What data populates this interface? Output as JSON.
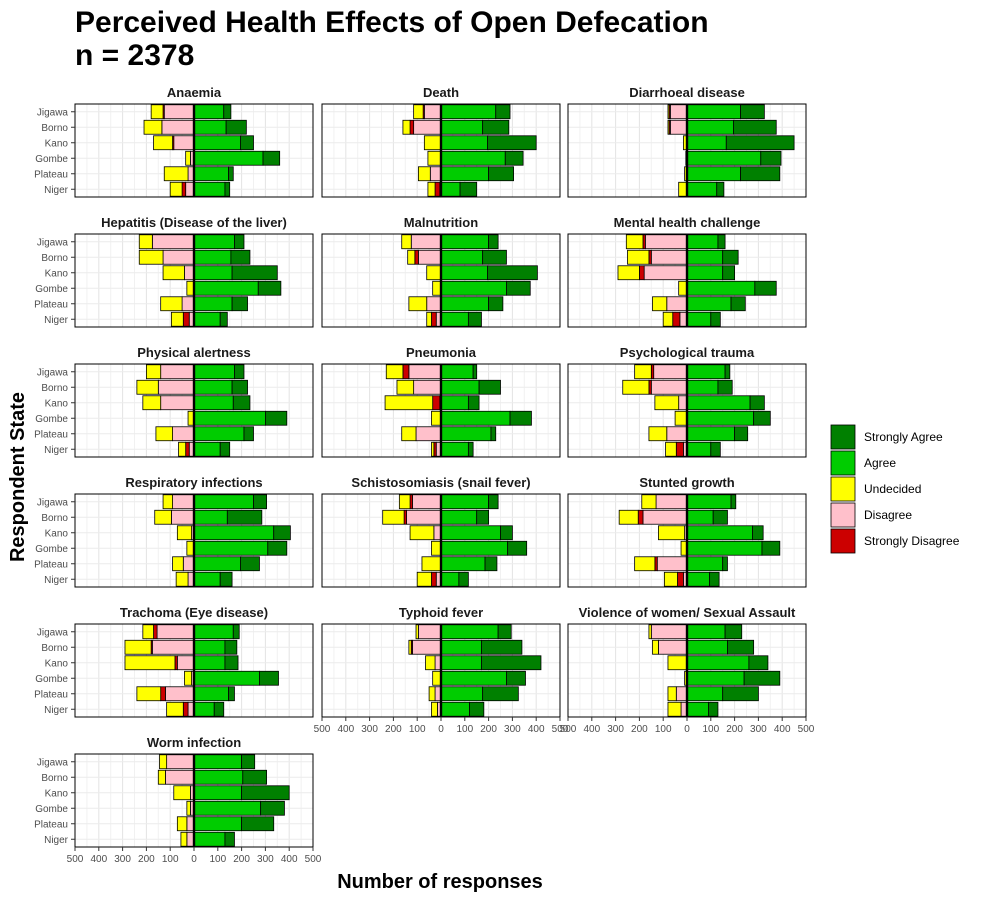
{
  "title_line1": "Perceived Health Effects of Open Defecation",
  "title_line2": "n = 2378",
  "chart_data": {
    "type": "bar",
    "orientation": "horizontal-diverging-stacked",
    "xlabel": "Number of responses",
    "ylabel": "Respondent State",
    "xlim": [
      -500,
      500
    ],
    "x_ticks": [
      -500,
      -400,
      -300,
      -200,
      -100,
      0,
      100,
      200,
      300,
      400,
      500
    ],
    "x_tick_labels": [
      "500",
      "400",
      "300",
      "200",
      "100",
      "0",
      "100",
      "200",
      "300",
      "400",
      "500"
    ],
    "grid": true,
    "legend_position": "right",
    "states": [
      "Jigawa",
      "Borno",
      "Kano",
      "Gombe",
      "Plateau",
      "Niger"
    ],
    "legend": [
      {
        "name": "Strongly Agree",
        "color": "#008000"
      },
      {
        "name": "Agree",
        "color": "#00CC00"
      },
      {
        "name": "Undecided",
        "color": "#FFFF00"
      },
      {
        "name": "Disagree",
        "color": "#FFC0CB"
      },
      {
        "name": "Strongly Disagree",
        "color": "#CC0000"
      }
    ],
    "value_order": [
      "strongly_disagree",
      "disagree",
      "undecided",
      "agree",
      "strongly_agree"
    ],
    "panels": [
      {
        "title": "Anaemia",
        "rows": [
          [
            5,
            125,
            50,
            125,
            30
          ],
          [
            0,
            135,
            75,
            135,
            85
          ],
          [
            5,
            85,
            80,
            195,
            55
          ],
          [
            0,
            15,
            20,
            290,
            70
          ],
          [
            0,
            25,
            100,
            145,
            20
          ],
          [
            15,
            35,
            50,
            130,
            20
          ]
        ]
      },
      {
        "title": "Death",
        "rows": [
          [
            5,
            70,
            40,
            230,
            60
          ],
          [
            15,
            115,
            30,
            175,
            110
          ],
          [
            0,
            0,
            70,
            195,
            205
          ],
          [
            0,
            0,
            55,
            270,
            75
          ],
          [
            0,
            45,
            50,
            200,
            105
          ],
          [
            20,
            5,
            30,
            80,
            70
          ]
        ]
      },
      {
        "title": "Diarrhoeal disease",
        "rows": [
          [
            5,
            70,
            5,
            225,
            100
          ],
          [
            5,
            70,
            5,
            195,
            180
          ],
          [
            0,
            0,
            15,
            165,
            285
          ],
          [
            0,
            0,
            5,
            310,
            85
          ],
          [
            0,
            0,
            10,
            225,
            165
          ],
          [
            0,
            0,
            35,
            125,
            30
          ]
        ]
      },
      {
        "title": "Hepatitis (Disease of the liver)",
        "rows": [
          [
            0,
            175,
            55,
            170,
            40
          ],
          [
            0,
            130,
            100,
            155,
            80
          ],
          [
            0,
            40,
            90,
            160,
            190
          ],
          [
            0,
            0,
            30,
            270,
            95
          ],
          [
            0,
            50,
            90,
            160,
            65
          ],
          [
            25,
            20,
            50,
            110,
            30
          ]
        ]
      },
      {
        "title": "Malnutrition",
        "rows": [
          [
            0,
            125,
            40,
            200,
            40
          ],
          [
            15,
            95,
            30,
            175,
            100
          ],
          [
            0,
            0,
            60,
            195,
            210
          ],
          [
            0,
            0,
            35,
            275,
            100
          ],
          [
            0,
            60,
            75,
            200,
            60
          ],
          [
            20,
            20,
            20,
            115,
            55
          ]
        ]
      },
      {
        "title": "Mental health challenge",
        "rows": [
          [
            10,
            175,
            70,
            130,
            30
          ],
          [
            10,
            150,
            90,
            150,
            65
          ],
          [
            20,
            180,
            90,
            150,
            50
          ],
          [
            0,
            0,
            35,
            285,
            90
          ],
          [
            0,
            85,
            60,
            185,
            60
          ],
          [
            30,
            30,
            40,
            100,
            40
          ]
        ]
      },
      {
        "title": "Physical alertness",
        "rows": [
          [
            0,
            140,
            60,
            170,
            40
          ],
          [
            0,
            150,
            90,
            160,
            65
          ],
          [
            0,
            140,
            75,
            165,
            70
          ],
          [
            0,
            0,
            25,
            300,
            90
          ],
          [
            0,
            90,
            70,
            210,
            40
          ],
          [
            15,
            20,
            30,
            110,
            40
          ]
        ]
      },
      {
        "title": "Pneumonia",
        "rows": [
          [
            25,
            135,
            70,
            135,
            15
          ],
          [
            0,
            115,
            70,
            160,
            90
          ],
          [
            30,
            5,
            200,
            115,
            45
          ],
          [
            0,
            0,
            40,
            290,
            90
          ],
          [
            0,
            105,
            60,
            210,
            20
          ],
          [
            10,
            20,
            10,
            115,
            20
          ]
        ]
      },
      {
        "title": "Psychological trauma",
        "rows": [
          [
            10,
            140,
            70,
            160,
            20
          ],
          [
            10,
            150,
            110,
            130,
            60
          ],
          [
            0,
            35,
            100,
            265,
            60
          ],
          [
            0,
            0,
            50,
            280,
            70
          ],
          [
            0,
            85,
            75,
            200,
            55
          ],
          [
            30,
            15,
            45,
            100,
            40
          ]
        ]
      },
      {
        "title": "Respiratory infections",
        "rows": [
          [
            0,
            90,
            40,
            250,
            55
          ],
          [
            0,
            95,
            70,
            140,
            145
          ],
          [
            0,
            10,
            60,
            335,
            70
          ],
          [
            0,
            0,
            30,
            310,
            80
          ],
          [
            0,
            45,
            45,
            195,
            80
          ],
          [
            0,
            25,
            50,
            110,
            50
          ]
        ]
      },
      {
        "title": "Schistosomiasis (snail fever)",
        "rows": [
          [
            10,
            120,
            45,
            200,
            40
          ],
          [
            10,
            145,
            90,
            150,
            50
          ],
          [
            0,
            30,
            100,
            250,
            50
          ],
          [
            0,
            0,
            40,
            280,
            80
          ],
          [
            0,
            0,
            80,
            185,
            50
          ],
          [
            20,
            20,
            60,
            75,
            40
          ]
        ]
      },
      {
        "title": "Stunted growth",
        "rows": [
          [
            0,
            130,
            60,
            185,
            20
          ],
          [
            20,
            185,
            80,
            110,
            60
          ],
          [
            0,
            10,
            110,
            275,
            45
          ],
          [
            0,
            0,
            25,
            315,
            75
          ],
          [
            10,
            125,
            85,
            150,
            20
          ],
          [
            25,
            15,
            55,
            95,
            40
          ]
        ]
      },
      {
        "title": "Trachoma (Eye disease)",
        "rows": [
          [
            15,
            155,
            45,
            165,
            25
          ],
          [
            5,
            175,
            110,
            130,
            50
          ],
          [
            10,
            70,
            210,
            130,
            55
          ],
          [
            0,
            10,
            30,
            275,
            80
          ],
          [
            20,
            120,
            100,
            145,
            25
          ],
          [
            20,
            25,
            70,
            85,
            40
          ]
        ]
      },
      {
        "title": "Typhoid fever",
        "rows": [
          [
            0,
            95,
            10,
            240,
            55
          ],
          [
            5,
            120,
            10,
            170,
            170
          ],
          [
            0,
            25,
            40,
            170,
            250
          ],
          [
            0,
            0,
            35,
            275,
            80
          ],
          [
            0,
            25,
            25,
            175,
            150
          ],
          [
            0,
            15,
            25,
            120,
            60
          ]
        ]
      },
      {
        "title": "Violence of women/ Sexual Assault",
        "rows": [
          [
            0,
            150,
            10,
            160,
            70
          ],
          [
            0,
            120,
            25,
            170,
            110
          ],
          [
            0,
            0,
            80,
            260,
            80
          ],
          [
            0,
            0,
            10,
            240,
            150
          ],
          [
            0,
            45,
            35,
            150,
            150
          ],
          [
            0,
            25,
            55,
            90,
            40
          ]
        ]
      },
      {
        "title": "Worm infection",
        "rows": [
          [
            0,
            115,
            30,
            200,
            55
          ],
          [
            0,
            120,
            30,
            205,
            100
          ],
          [
            0,
            15,
            70,
            200,
            200
          ],
          [
            0,
            15,
            15,
            280,
            100
          ],
          [
            0,
            30,
            40,
            200,
            135
          ],
          [
            0,
            30,
            25,
            130,
            40
          ]
        ]
      }
    ]
  }
}
